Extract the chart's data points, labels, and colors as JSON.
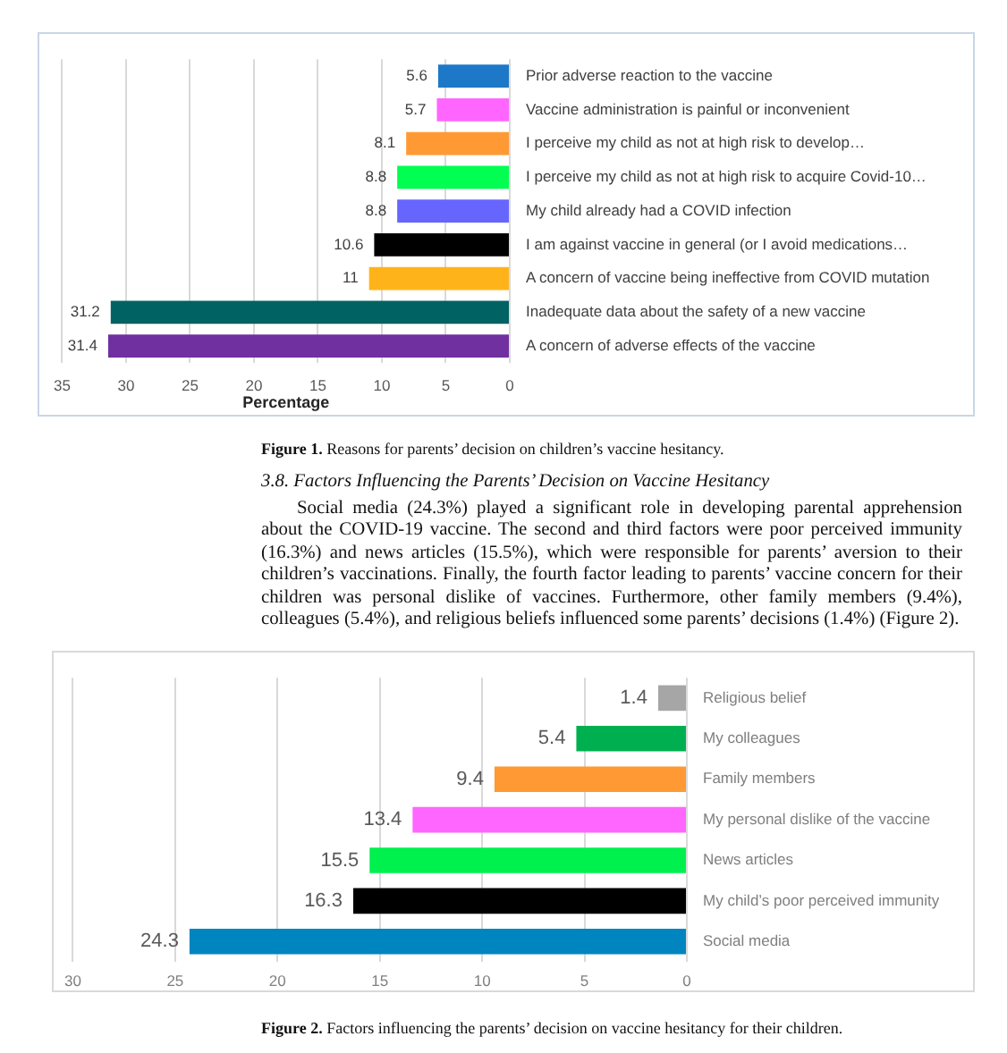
{
  "chart_data": [
    {
      "type": "bar",
      "orientation": "horizontal",
      "categories": [
        "Prior adverse reaction to the vaccine",
        "Vaccine administration is painful or inconvenient",
        "I perceive my child as not at high risk to develop…",
        "I perceive my child as not at high risk to acquire Covid-10…",
        "My child already had a COVID infection",
        "I am against vaccine in general (or I avoid medications…",
        "A concern of vaccine being ineffective from COVID mutation",
        "Inadequate data about the safety of a new vaccine",
        "A concern of adverse effects of the vaccine"
      ],
      "values": [
        5.6,
        5.7,
        8.1,
        8.8,
        8.8,
        10.6,
        11,
        31.2,
        31.4
      ],
      "colors": [
        "#1e78c8",
        "#ff66ff",
        "#ff9933",
        "#00ff50",
        "#6666ff",
        "#000000",
        "#ffb31a",
        "#006262",
        "#7030a0"
      ],
      "xlim": [
        35,
        0
      ],
      "xticks": [
        35,
        30,
        25,
        20,
        15,
        10,
        5,
        0
      ],
      "xlabel": "Percentage",
      "grid": "x",
      "data_labels": true,
      "annotations": [
        "Figure 1. Reasons for parents’ decision on children’s vaccine hesitancy.",
        "3.8. Factors Influencing the Parents’ Decision on Vaccine Hesitancy",
        "Social media (24.3%) played a significant role in developing parental apprehension about the COVID-19 vaccine. The second and third factors were poor perceived immunity (16.3%) and news articles (15.5%), which were responsible for parents’ aversion to their children’s vaccinations. Finally, the fourth factor leading to parents’ vaccine concern for their children was personal dislike of vaccines. Furthermore, other family members (9.4%), colleagues (5.4%), and religious beliefs influenced some parents’ decisions (1.4%) (Figure 2)."
      ]
    },
    {
      "type": "bar",
      "orientation": "horizontal",
      "categories": [
        "Religious belief",
        "My colleagues",
        "Family members",
        "My personal dislike of the vaccine",
        "News articles",
        "My child’s poor perceived immunity",
        "Social media"
      ],
      "values": [
        1.4,
        5.4,
        9.4,
        13.4,
        15.5,
        16.3,
        24.3
      ],
      "colors": [
        "#a6a6a6",
        "#00b050",
        "#ff9933",
        "#ff66ff",
        "#00f04e",
        "#000000",
        "#0085c0"
      ],
      "xlim": [
        30,
        0
      ],
      "xticks": [
        30,
        25,
        20,
        15,
        10,
        5,
        0
      ],
      "grid": "x",
      "data_labels": true,
      "annotations": [
        "Figure 2. Factors influencing the parents’ decision on vaccine hesitancy for their children."
      ]
    }
  ]
}
